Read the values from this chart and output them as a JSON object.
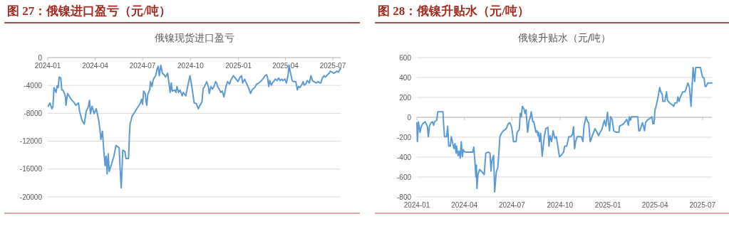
{
  "chart_data": [
    {
      "type": "line",
      "title": "图 27：俄镍进口盈亏（元/吨）",
      "subtitle": "俄镍现货进口盈亏",
      "grid": "y",
      "marker": "none",
      "line_style": "solid",
      "xlim": [
        "2024-01-01",
        "2025-07-16"
      ],
      "xticks": [
        "2024-01",
        "2024-04",
        "2024-07",
        "2024-10",
        "2025-01",
        "2025-04",
        "2025-07"
      ],
      "ylim": [
        -20000,
        0
      ],
      "yticks": [
        -20000,
        -16000,
        -12000,
        -8000,
        -4000,
        0
      ],
      "series": [
        {
          "color": "#5b9bd5",
          "x": [
            "2024-01-02",
            "2024-01-05",
            "2024-01-09",
            "2024-01-11",
            "2024-01-13",
            "2024-01-17",
            "2024-01-19",
            "2024-01-21",
            "2024-01-23",
            "2024-01-26",
            "2024-01-28",
            "2024-01-30",
            "2024-02-02",
            "2024-02-04",
            "2024-02-05",
            "2024-02-08",
            "2024-02-15",
            "2024-02-21",
            "2024-02-24",
            "2024-02-29",
            "2024-03-02",
            "2024-03-07",
            "2024-03-11",
            "2024-03-15",
            "2024-03-19",
            "2024-03-21",
            "2024-03-23",
            "2024-03-26",
            "2024-03-30",
            "2024-04-03",
            "2024-04-08",
            "2024-04-10",
            "2024-04-12",
            "2024-04-15",
            "2024-04-17",
            "2024-04-20",
            "2024-04-22",
            "2024-04-24",
            "2024-04-26",
            "2024-04-28",
            "2024-05-03",
            "2024-05-07",
            "2024-05-11",
            "2024-05-14",
            "2024-05-17",
            "2024-05-19",
            "2024-05-21",
            "2024-05-22",
            "2024-05-24",
            "2024-05-28",
            "2024-05-30",
            "2024-06-04",
            "2024-06-06",
            "2024-06-07",
            "2024-06-11",
            "2024-06-14",
            "2024-06-17",
            "2024-06-21",
            "2024-06-23",
            "2024-06-27",
            "2024-06-29",
            "2024-07-01",
            "2024-07-03",
            "2024-07-06",
            "2024-07-08",
            "2024-07-09",
            "2024-07-11",
            "2024-07-15",
            "2024-07-16",
            "2024-07-19",
            "2024-07-21",
            "2024-07-23",
            "2024-07-26",
            "2024-07-29",
            "2024-07-31",
            "2024-08-02",
            "2024-08-05",
            "2024-08-08",
            "2024-08-11",
            "2024-08-14",
            "2024-08-18",
            "2024-08-20",
            "2024-08-23",
            "2024-08-25",
            "2024-08-27",
            "2024-09-01",
            "2024-09-03",
            "2024-09-05",
            "2024-09-08",
            "2024-09-11",
            "2024-09-15",
            "2024-09-17",
            "2024-09-22",
            "2024-09-26",
            "2024-09-30",
            "2024-10-03",
            "2024-10-08",
            "2024-10-12",
            "2024-10-16",
            "2024-10-19",
            "2024-10-23",
            "2024-10-25",
            "2024-10-28",
            "2024-11-01",
            "2024-11-04",
            "2024-11-06",
            "2024-11-09",
            "2024-11-12",
            "2024-11-15",
            "2024-11-18",
            "2024-11-20",
            "2024-11-22",
            "2024-11-26",
            "2024-11-28",
            "2024-12-01",
            "2024-12-04",
            "2024-12-06",
            "2024-12-08",
            "2024-12-11",
            "2024-12-15",
            "2024-12-17",
            "2024-12-22",
            "2024-12-26",
            "2024-12-31",
            "2025-01-04",
            "2025-01-07",
            "2025-01-09",
            "2025-01-13",
            "2025-01-16",
            "2025-01-18",
            "2025-01-22",
            "2025-01-24",
            "2025-01-27",
            "2025-02-01",
            "2025-02-05",
            "2025-02-09",
            "2025-02-12",
            "2025-02-14",
            "2025-02-18",
            "2025-02-21",
            "2025-02-24",
            "2025-02-26",
            "2025-02-28",
            "2025-03-02",
            "2025-03-05",
            "2025-03-07",
            "2025-03-09",
            "2025-03-13",
            "2025-03-16",
            "2025-03-19",
            "2025-03-22",
            "2025-03-25",
            "2025-03-27",
            "2025-03-31",
            "2025-04-03",
            "2025-04-06",
            "2025-04-08",
            "2025-04-10",
            "2025-04-14",
            "2025-04-17",
            "2025-04-21",
            "2025-04-24",
            "2025-04-26",
            "2025-04-29",
            "2025-05-03",
            "2025-05-05",
            "2025-05-07",
            "2025-05-10",
            "2025-05-13",
            "2025-05-17",
            "2025-05-20",
            "2025-05-23",
            "2025-05-26",
            "2025-05-30",
            "2025-06-03",
            "2025-06-06",
            "2025-06-08",
            "2025-06-11",
            "2025-06-14",
            "2025-06-17",
            "2025-06-21",
            "2025-06-24",
            "2025-06-26",
            "2025-06-30",
            "2025-07-03",
            "2025-07-06",
            "2025-07-09",
            "2025-07-12",
            "2025-07-14",
            "2025-07-16"
          ],
          "values": [
            -7000,
            -6500,
            -7350,
            -7000,
            -4300,
            -5000,
            -4050,
            -4300,
            -2800,
            -2950,
            -4650,
            -4650,
            -5150,
            -5650,
            -6850,
            -5150,
            -6000,
            -6500,
            -6850,
            -6500,
            -7700,
            -9050,
            -9550,
            -7700,
            -7000,
            -6150,
            -8050,
            -7000,
            -8050,
            -7350,
            -9050,
            -10250,
            -11750,
            -10550,
            -12800,
            -15500,
            -14150,
            -16700,
            -13800,
            -16350,
            -15150,
            -14150,
            -12600,
            -12800,
            -12950,
            -16150,
            -18700,
            -17000,
            -13300,
            -13450,
            -14500,
            -14500,
            -10750,
            -9550,
            -8400,
            -8050,
            -7700,
            -7200,
            -7000,
            -6500,
            -6000,
            -6700,
            -4800,
            -5150,
            -6500,
            -6850,
            -5300,
            -4500,
            -3450,
            -4150,
            -3300,
            -2950,
            -2600,
            -1600,
            -1250,
            -2600,
            -1100,
            -2250,
            -2450,
            -2800,
            -2250,
            -3300,
            -5000,
            -3650,
            -4800,
            -4650,
            -5000,
            -4150,
            -5000,
            -4650,
            -5500,
            -5000,
            -5500,
            -3950,
            -2600,
            -3950,
            -6500,
            -6600,
            -7350,
            -6850,
            -6350,
            -4500,
            -4150,
            -3450,
            -4150,
            -5150,
            -4150,
            -4500,
            -4150,
            -3450,
            -3650,
            -4150,
            -4650,
            -5000,
            -4800,
            -5650,
            -5000,
            -4150,
            -3450,
            -3800,
            -3300,
            -2600,
            -2950,
            -3450,
            -2800,
            -2600,
            -3650,
            -3100,
            -3650,
            -3950,
            -4650,
            -5150,
            -4650,
            -4300,
            -3800,
            -3650,
            -3450,
            -3300,
            -2950,
            -2600,
            -2450,
            -2950,
            -4150,
            -3300,
            -3950,
            -3650,
            -3450,
            -3100,
            -3300,
            -2950,
            -3300,
            -3100,
            -3300,
            -3100,
            -3650,
            -2600,
            -1100,
            -1950,
            -3300,
            -3450,
            -3450,
            -4650,
            -4150,
            -4300,
            -3800,
            -3450,
            -3950,
            -3800,
            -3300,
            -3650,
            -2600,
            -3300,
            -3450,
            -3650,
            -3450,
            -3650,
            -3650,
            -2950,
            -2600,
            -2800,
            -2450,
            -2250,
            -1950,
            -2100,
            -2250,
            -2100,
            -1950,
            -2100,
            -1750,
            -1600
          ]
        }
      ]
    },
    {
      "type": "line",
      "title": "图 28：俄镍升贴水（元/吨）",
      "subtitle": "俄镍升贴水（元/吨）",
      "grid": "y",
      "marker": "none",
      "line_style": "solid",
      "xlim": [
        "2024-01-01",
        "2025-07-19"
      ],
      "xticks": [
        "2024-01",
        "2024-04",
        "2024-07",
        "2024-10",
        "2025-01",
        "2025-04",
        "2025-07"
      ],
      "ylim": [
        -800,
        600
      ],
      "yticks": [
        -800,
        -600,
        -400,
        -200,
        0,
        200,
        400,
        600
      ],
      "series": [
        {
          "color": "#5b9bd5",
          "x": [
            "2024-01-01",
            "2024-01-02",
            "2024-01-04",
            "2024-01-07",
            "2024-01-09",
            "2024-01-12",
            "2024-01-17",
            "2024-01-21",
            "2024-01-23",
            "2024-01-25",
            "2024-01-28",
            "2024-01-31",
            "2024-02-02",
            "2024-02-04",
            "2024-02-08",
            "2024-02-10",
            "2024-02-18",
            "2024-02-20",
            "2024-02-21",
            "2024-02-23",
            "2024-02-27",
            "2024-02-29",
            "2024-03-02",
            "2024-03-05",
            "2024-03-07",
            "2024-03-09",
            "2024-03-12",
            "2024-03-14",
            "2024-03-16",
            "2024-03-17",
            "2024-03-20",
            "2024-03-22",
            "2024-03-24",
            "2024-03-26",
            "2024-03-28",
            "2024-03-30",
            "2024-03-31",
            "2024-04-03",
            "2024-04-17",
            "2024-04-19",
            "2024-04-21",
            "2024-04-23",
            "2024-04-24",
            "2024-04-25",
            "2024-04-27",
            "2024-04-30",
            "2024-05-05",
            "2024-05-09",
            "2024-05-12",
            "2024-05-17",
            "2024-05-20",
            "2024-05-22",
            "2024-05-24",
            "2024-05-27",
            "2024-05-29",
            "2024-06-01",
            "2024-06-04",
            "2024-06-06",
            "2024-06-08",
            "2024-06-11",
            "2024-06-15",
            "2024-06-20",
            "2024-06-24",
            "2024-06-27",
            "2024-06-30",
            "2024-07-02",
            "2024-07-04",
            "2024-07-09",
            "2024-07-11",
            "2024-07-15",
            "2024-07-17",
            "2024-07-19",
            "2024-07-21",
            "2024-07-24",
            "2024-07-26",
            "2024-07-28",
            "2024-07-31",
            "2024-08-03",
            "2024-08-05",
            "2024-08-07",
            "2024-08-10",
            "2024-08-12",
            "2024-08-16",
            "2024-08-18",
            "2024-08-20",
            "2024-08-21",
            "2024-08-23",
            "2024-08-25",
            "2024-08-28",
            "2024-09-01",
            "2024-09-04",
            "2024-09-08",
            "2024-09-10",
            "2024-09-12",
            "2024-09-15",
            "2024-09-18",
            "2024-09-21",
            "2024-09-24",
            "2024-09-27",
            "2024-09-30",
            "2024-10-03",
            "2024-10-08",
            "2024-10-10",
            "2024-10-14",
            "2024-10-18",
            "2024-10-22",
            "2024-10-25",
            "2024-10-27",
            "2024-10-29",
            "2024-10-31",
            "2024-11-03",
            "2024-11-11",
            "2024-11-14",
            "2024-11-16",
            "2024-11-20",
            "2024-11-23",
            "2024-11-25",
            "2024-11-28",
            "2024-12-02",
            "2024-12-07",
            "2024-12-11",
            "2024-12-14",
            "2024-12-16",
            "2024-12-20",
            "2024-12-25",
            "2024-12-28",
            "2024-12-31",
            "2025-01-02",
            "2025-01-04",
            "2025-01-06",
            "2025-01-09",
            "2025-01-12",
            "2025-01-16",
            "2025-01-22",
            "2025-01-23",
            "2025-01-31",
            "2025-02-06",
            "2025-02-09",
            "2025-02-11",
            "2025-02-13",
            "2025-02-15",
            "2025-02-27",
            "2025-03-01",
            "2025-03-03",
            "2025-03-08",
            "2025-03-10",
            "2025-03-12",
            "2025-03-14",
            "2025-03-17",
            "2025-03-24",
            "2025-03-26",
            "2025-03-28",
            "2025-03-30",
            "2025-04-01",
            "2025-04-03",
            "2025-04-07",
            "2025-04-10",
            "2025-04-12",
            "2025-04-15",
            "2025-04-16",
            "2025-04-20",
            "2025-04-23",
            "2025-04-25",
            "2025-04-29",
            "2025-05-04",
            "2025-05-07",
            "2025-05-09",
            "2025-05-13",
            "2025-05-15",
            "2025-05-17",
            "2025-05-19",
            "2025-05-24",
            "2025-05-28",
            "2025-05-30",
            "2025-06-03",
            "2025-06-06",
            "2025-06-09",
            "2025-06-13",
            "2025-06-16",
            "2025-06-18",
            "2025-06-27",
            "2025-07-01",
            "2025-07-04",
            "2025-07-06",
            "2025-07-08",
            "2025-07-11",
            "2025-07-19"
          ],
          "values": [
            -55,
            -245,
            -45,
            -150,
            -100,
            -65,
            -45,
            -90,
            -195,
            -90,
            -55,
            -45,
            -80,
            -45,
            -30,
            55,
            55,
            55,
            -55,
            -195,
            -195,
            -90,
            -290,
            -290,
            -195,
            -245,
            -315,
            -265,
            -360,
            -290,
            -385,
            -340,
            -410,
            -245,
            -395,
            -325,
            -340,
            -350,
            -350,
            -300,
            -430,
            -600,
            -480,
            -715,
            -575,
            -525,
            -550,
            -575,
            -360,
            -350,
            -360,
            -540,
            -430,
            -385,
            -750,
            -550,
            -505,
            -360,
            -195,
            -160,
            -135,
            -115,
            -65,
            -55,
            -90,
            -150,
            -245,
            -245,
            -150,
            -125,
            40,
            5,
            110,
            85,
            40,
            75,
            -150,
            -30,
            -5,
            55,
            -45,
            -45,
            -150,
            -135,
            -185,
            -150,
            -245,
            -160,
            -390,
            -195,
            -115,
            -100,
            -290,
            -185,
            -245,
            -135,
            -210,
            -195,
            -290,
            -395,
            -385,
            -350,
            -290,
            -290,
            -195,
            -195,
            -170,
            -95,
            -315,
            -245,
            -195,
            -195,
            -245,
            -90,
            5,
            -45,
            -55,
            -245,
            -185,
            -115,
            -150,
            -185,
            -160,
            -125,
            -30,
            -90,
            50,
            -55,
            -135,
            5,
            -20,
            -135,
            -150,
            -150,
            -90,
            -65,
            -20,
            -80,
            5,
            -30,
            5,
            5,
            -135,
            -135,
            -55,
            -90,
            -135,
            -55,
            -30,
            -5,
            5,
            -65,
            -65,
            75,
            110,
            205,
            300,
            255,
            230,
            160,
            160,
            255,
            170,
            145,
            125,
            110,
            145,
            145,
            205,
            160,
            195,
            255,
            255,
            275,
            345,
            300,
            110,
            500,
            360,
            500,
            500,
            405,
            395,
            310,
            310,
            345,
            345
          ]
        }
      ]
    }
  ]
}
